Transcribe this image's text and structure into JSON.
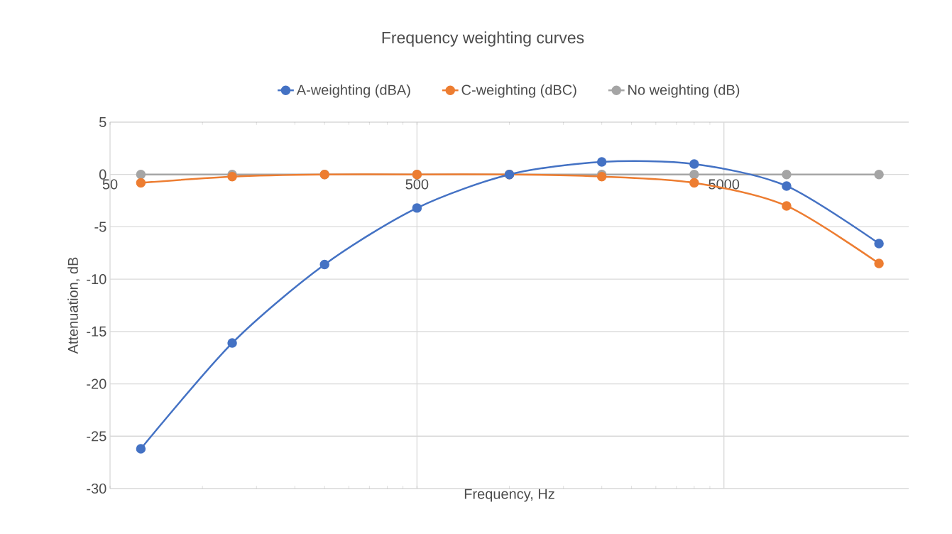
{
  "chart_data": {
    "type": "line",
    "title": "Frequency weighting curves",
    "xlabel": "Frequency, Hz",
    "ylabel": "Attenuation, dB",
    "x": [
      63,
      125,
      250,
      500,
      1000,
      2000,
      4000,
      8000,
      16000
    ],
    "series": [
      {
        "name": "A-weighting (dBA)",
        "color": "#4472c4",
        "values": [
          -26.2,
          -16.1,
          -8.6,
          -3.2,
          0,
          1.2,
          1.0,
          -1.1,
          -6.6
        ]
      },
      {
        "name": "C-weighting (dBC)",
        "color": "#ed7d31",
        "values": [
          -0.8,
          -0.2,
          0,
          0,
          0,
          -0.2,
          -0.8,
          -3.0,
          -8.5
        ]
      },
      {
        "name": "No weighting (dB)",
        "color": "#a5a5a5",
        "values": [
          0,
          0,
          0,
          0,
          0,
          0,
          0,
          0,
          0
        ]
      }
    ],
    "log": "x",
    "xlim": [
      50,
      20000
    ],
    "xticks": [
      50,
      500,
      5000
    ],
    "ylim": [
      -30,
      5
    ],
    "yticks": [
      -30,
      -25,
      -20,
      -15,
      -10,
      -5,
      0,
      5
    ],
    "grid": true,
    "legend": "top",
    "marker": "circle"
  }
}
